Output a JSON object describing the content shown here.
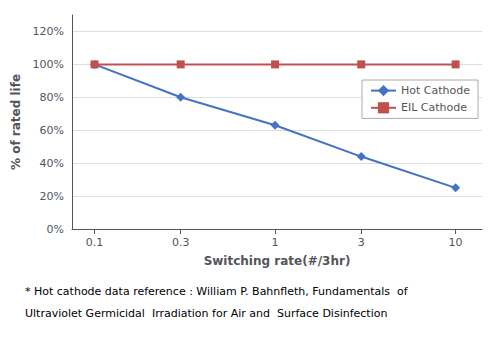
{
  "chart_data": {
    "type": "line",
    "x": [
      0.1,
      0.3,
      1,
      3,
      10
    ],
    "series": [
      {
        "name": "Hot Cathode",
        "color": "#4472C4",
        "marker": "diamond",
        "values": [
          1.0,
          0.8,
          0.63,
          0.44,
          0.25
        ]
      },
      {
        "name": "EIL Cathode",
        "color": "#C0504D",
        "marker": "square",
        "values": [
          1.0,
          1.0,
          1.0,
          1.0,
          1.0
        ]
      }
    ],
    "xlabel": "Switching rate(#/3hr)",
    "ylabel": "% of rated life",
    "log": "x",
    "xlim": [
      0.075,
      14
    ],
    "xticks": [
      0.1,
      0.3,
      1,
      3,
      10
    ],
    "ylim": [
      0,
      1.3
    ],
    "yticks": [
      {
        "value": 0,
        "label": "0%"
      },
      {
        "value": 0.2,
        "label": "20%"
      },
      {
        "value": 0.4,
        "label": "40%"
      },
      {
        "value": 0.6,
        "label": "60%"
      },
      {
        "value": 0.8,
        "label": "80%"
      },
      {
        "value": 1.0,
        "label": "100%"
      },
      {
        "value": 1.2,
        "label": "120%"
      }
    ],
    "grid": true,
    "legend": "right",
    "annotations": [
      "* Hot cathode data reference : William P. Bahnfleth, Fundamentals  of",
      "Ultraviolet Germicidal  Irradiation for Air and  Surface Disinfection"
    ]
  }
}
